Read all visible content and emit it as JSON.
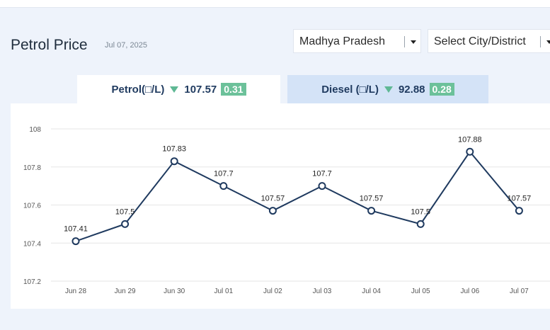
{
  "header": {
    "title": "Petrol Price",
    "date": "Jul 07, 2025"
  },
  "filters": {
    "state": "Madhya Pradesh",
    "city": "Select City/District"
  },
  "tabs": [
    {
      "label": "Petrol(□/L)",
      "price": "107.57",
      "change": "0.31",
      "trend": "down"
    },
    {
      "label": "Diesel (□/L)",
      "price": "92.88",
      "change": "0.28",
      "trend": "down"
    }
  ],
  "colors": {
    "line": "#1f3a5f",
    "badge": "#6cc19a",
    "arrow": "#5fb894",
    "tab_inactive": "#d4e3f7"
  },
  "chart_data": {
    "type": "line",
    "categories": [
      "Jun 28",
      "Jun 29",
      "Jun 30",
      "Jul 01",
      "Jul 02",
      "Jul 03",
      "Jul 04",
      "Jul 05",
      "Jul 06",
      "Jul 07"
    ],
    "values": [
      107.41,
      107.5,
      107.83,
      107.7,
      107.57,
      107.7,
      107.57,
      107.5,
      107.88,
      107.57
    ],
    "data_labels": [
      "107.41",
      "107.5",
      "107.83",
      "107.7",
      "107.57",
      "107.7",
      "107.57",
      "107.5",
      "107.88",
      "107.57"
    ],
    "ylim": [
      107.2,
      108
    ],
    "yticks": [
      "107.2",
      "107.4",
      "107.6",
      "107.8",
      "108"
    ],
    "grid": true,
    "legend": "none"
  }
}
